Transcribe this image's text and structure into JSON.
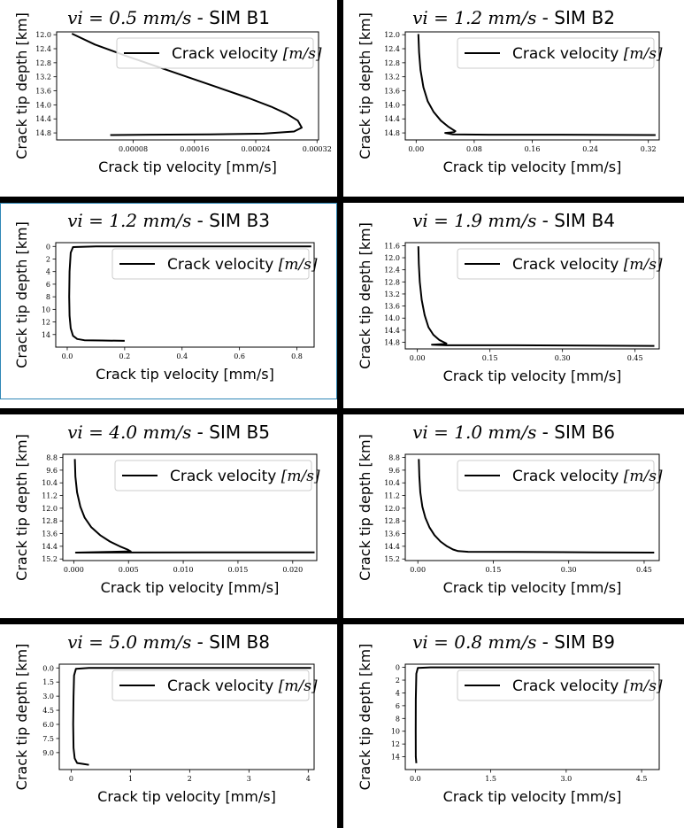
{
  "xlabel": "Crack tip velocity [mm/s]",
  "ylabel": "Crack tip depth [km]",
  "legend": {
    "text": "Crack velocity ",
    "unit": "[m/s]"
  },
  "line_color": "#000000",
  "selected_panel_color": "#2f87b6",
  "chart_data": [
    {
      "type": "line",
      "title_math": "v_i = 0.5 mm/s",
      "title_display": "vi = 0.5 mm/s",
      "title_sim": "SIM B1",
      "xlabel": "Crack tip velocity [mm/s]",
      "ylabel": "Crack tip depth [km]",
      "xlim": [
        -2e-05,
        0.000322
      ],
      "ylim": [
        15.0,
        11.92
      ],
      "y_inverted": true,
      "xticks": [
        8e-05,
        0.00016,
        0.00024,
        0.00032
      ],
      "xtick_labels": [
        "0.00008",
        "0.00016",
        "0.00024",
        "0.00032"
      ],
      "yticks": [
        12.0,
        12.4,
        12.8,
        13.2,
        13.6,
        14.0,
        14.4,
        14.8
      ],
      "ytick_labels": [
        "12.0",
        "12.4",
        "12.8",
        "13.2",
        "13.6",
        "14.0",
        "14.4",
        "14.8"
      ],
      "legend_position": "upper right",
      "series": [
        {
          "name": "Crack velocity [m/s]",
          "x": [
            0.0,
            3e-05,
            7e-05,
            0.00011,
            0.00015,
            0.00019,
            0.00023,
            0.00026,
            0.00028,
            0.000295,
            0.0003,
            0.00029,
            0.00025,
            0.00018,
            0.0001,
            5e-05
          ],
          "y": [
            11.97,
            12.28,
            12.6,
            12.9,
            13.2,
            13.5,
            13.8,
            14.05,
            14.25,
            14.45,
            14.65,
            14.76,
            14.82,
            14.84,
            14.85,
            14.86
          ]
        }
      ]
    },
    {
      "type": "line",
      "title_math": "v_i = 1.2 mm/s",
      "title_display": "vi = 1.2 mm/s",
      "title_sim": "SIM B2",
      "xlabel": "Crack tip velocity [mm/s]",
      "ylabel": "Crack tip depth [km]",
      "xlim": [
        -0.015,
        0.335
      ],
      "ylim": [
        15.0,
        11.92
      ],
      "y_inverted": true,
      "xticks": [
        0.0,
        0.08,
        0.16,
        0.24,
        0.32
      ],
      "xtick_labels": [
        "0.00",
        "0.08",
        "0.16",
        "0.24",
        "0.32"
      ],
      "yticks": [
        12.0,
        12.4,
        12.8,
        13.2,
        13.6,
        14.0,
        14.4,
        14.8
      ],
      "ytick_labels": [
        "12.0",
        "12.4",
        "12.8",
        "13.2",
        "13.6",
        "14.0",
        "14.4",
        "14.8"
      ],
      "legend_position": "upper right",
      "series": [
        {
          "name": "Crack velocity [m/s]",
          "x": [
            0.003,
            0.004,
            0.006,
            0.01,
            0.016,
            0.024,
            0.034,
            0.044,
            0.05,
            0.054,
            0.052,
            0.04,
            0.05,
            0.1,
            0.2,
            0.33
          ],
          "y": [
            11.98,
            12.5,
            13.0,
            13.5,
            13.9,
            14.2,
            14.45,
            14.62,
            14.7,
            14.75,
            14.78,
            14.8,
            14.84,
            14.85,
            14.85,
            14.86
          ]
        }
      ]
    },
    {
      "type": "line",
      "title_math": "v_i = 1.2 mm/s",
      "title_display": "vi = 1.2 mm/s",
      "title_sim": "SIM B3",
      "xlabel": "Crack tip velocity [mm/s]",
      "ylabel": "Crack tip depth [km]",
      "xlim": [
        -0.04,
        0.86
      ],
      "ylim": [
        16.0,
        -0.6
      ],
      "y_inverted": true,
      "xticks": [
        0.0,
        0.2,
        0.4,
        0.6,
        0.8
      ],
      "xtick_labels": [
        "0.0",
        "0.2",
        "0.4",
        "0.6",
        "0.8"
      ],
      "yticks": [
        0,
        2,
        4,
        6,
        8,
        10,
        12,
        14
      ],
      "ytick_labels": [
        "0",
        "2",
        "4",
        "6",
        "8",
        "10",
        "12",
        "14"
      ],
      "legend_position": "upper right",
      "series": [
        {
          "name": "Crack velocity [m/s]",
          "x": [
            0.85,
            0.5,
            0.1,
            0.02,
            0.012,
            0.008,
            0.007,
            0.008,
            0.012,
            0.02,
            0.035,
            0.06,
            0.12,
            0.2
          ],
          "y": [
            0.0,
            0.0,
            0.0,
            0.1,
            1.0,
            4.0,
            8.0,
            11.0,
            13.0,
            14.2,
            14.7,
            14.9,
            14.95,
            15.0
          ]
        }
      ]
    },
    {
      "type": "line",
      "title_math": "v_i = 1.9 mm/s",
      "title_display": "vi = 1.9 mm/s",
      "title_sim": "SIM B4",
      "xlabel": "Crack tip velocity [mm/s]",
      "ylabel": "Crack tip depth [km]",
      "xlim": [
        -0.025,
        0.5
      ],
      "ylim": [
        15.02,
        11.5
      ],
      "y_inverted": true,
      "xticks": [
        0.0,
        0.15,
        0.3,
        0.45
      ],
      "xtick_labels": [
        "0.00",
        "0.15",
        "0.30",
        "0.45"
      ],
      "yticks": [
        11.6,
        12.0,
        12.4,
        12.8,
        13.2,
        13.6,
        14.0,
        14.4,
        14.8
      ],
      "ytick_labels": [
        "11.6",
        "12.0",
        "12.4",
        "12.8",
        "13.2",
        "13.6",
        "14.0",
        "14.4",
        "14.8"
      ],
      "legend_position": "upper right",
      "series": [
        {
          "name": "Crack velocity [m/s]",
          "x": [
            0.002,
            0.003,
            0.005,
            0.009,
            0.015,
            0.023,
            0.033,
            0.045,
            0.055,
            0.06,
            0.055,
            0.03,
            0.06,
            0.2,
            0.35,
            0.49
          ],
          "y": [
            11.62,
            12.2,
            12.8,
            13.4,
            13.9,
            14.3,
            14.55,
            14.72,
            14.8,
            14.84,
            14.86,
            14.88,
            14.9,
            14.9,
            14.91,
            14.92
          ]
        }
      ]
    },
    {
      "type": "line",
      "title_math": "v_i = 4.0 mm/s",
      "title_display": "vi = 4.0 mm/s",
      "title_sim": "SIM B5",
      "xlabel": "Crack tip velocity [mm/s]",
      "ylabel": "Crack tip depth [km]",
      "xlim": [
        -0.001,
        0.0222
      ],
      "ylim": [
        15.3,
        8.6
      ],
      "y_inverted": true,
      "xticks": [
        0.0,
        0.005,
        0.01,
        0.015,
        0.02
      ],
      "xtick_labels": [
        "0.000",
        "0.005",
        "0.010",
        "0.015",
        "0.020"
      ],
      "yticks": [
        8.8,
        9.6,
        10.4,
        11.2,
        12.0,
        12.8,
        13.6,
        14.4,
        15.2
      ],
      "ytick_labels": [
        "8.8",
        "9.6",
        "10.4",
        "11.2",
        "12.0",
        "12.8",
        "13.6",
        "14.4",
        "15.2"
      ],
      "legend_position": "upper right",
      "series": [
        {
          "name": "Crack velocity [m/s]",
          "x": [
            0.0001,
            0.00015,
            0.0003,
            0.0006,
            0.001,
            0.0016,
            0.0024,
            0.0033,
            0.0042,
            0.0049,
            0.0052,
            0.003,
            0.0002,
            0.005,
            0.012,
            0.022
          ],
          "y": [
            8.9,
            10.0,
            11.0,
            11.9,
            12.6,
            13.2,
            13.7,
            14.1,
            14.4,
            14.6,
            14.72,
            14.76,
            14.8,
            14.79,
            14.78,
            14.78
          ]
        }
      ]
    },
    {
      "type": "line",
      "title_math": "v_i = 1.0 mm/s",
      "title_display": "vi = 1.0 mm/s",
      "title_sim": "SIM B6",
      "xlabel": "Crack tip velocity [mm/s]",
      "ylabel": "Crack tip depth [km]",
      "xlim": [
        -0.025,
        0.48
      ],
      "ylim": [
        15.3,
        8.6
      ],
      "y_inverted": true,
      "xticks": [
        0.0,
        0.15,
        0.3,
        0.45
      ],
      "xtick_labels": [
        "0.00",
        "0.15",
        "0.30",
        "0.45"
      ],
      "yticks": [
        8.8,
        9.6,
        10.4,
        11.2,
        12.0,
        12.8,
        13.6,
        14.4,
        15.2
      ],
      "ytick_labels": [
        "8.8",
        "9.6",
        "10.4",
        "11.2",
        "12.0",
        "12.8",
        "13.6",
        "14.4",
        "15.2"
      ],
      "legend_position": "upper right",
      "series": [
        {
          "name": "Crack velocity [m/s]",
          "x": [
            0.002,
            0.003,
            0.005,
            0.009,
            0.015,
            0.023,
            0.033,
            0.045,
            0.058,
            0.07,
            0.08,
            0.1,
            0.2,
            0.35,
            0.47
          ],
          "y": [
            8.9,
            10.0,
            11.0,
            11.9,
            12.6,
            13.2,
            13.7,
            14.1,
            14.4,
            14.6,
            14.7,
            14.75,
            14.76,
            14.78,
            14.8
          ]
        }
      ]
    },
    {
      "type": "line",
      "title_math": "v_i = 5.0 mm/s",
      "title_display": "vi = 5.0 mm/s",
      "title_sim": "SIM B8",
      "xlabel": "Crack tip velocity [mm/s]",
      "ylabel": "Crack tip depth [km]",
      "xlim": [
        -0.2,
        4.1
      ],
      "ylim": [
        10.8,
        -0.4
      ],
      "y_inverted": true,
      "xticks": [
        0,
        1,
        2,
        3,
        4
      ],
      "xtick_labels": [
        "0",
        "1",
        "2",
        "3",
        "4"
      ],
      "yticks": [
        0.0,
        1.5,
        3.0,
        4.5,
        6.0,
        7.5,
        9.0
      ],
      "ytick_labels": [
        "0.0",
        "1.5",
        "3.0",
        "4.5",
        "6.0",
        "7.5",
        "9.0"
      ],
      "legend_position": "upper right",
      "series": [
        {
          "name": "Crack velocity [m/s]",
          "x": [
            4.05,
            2.0,
            0.3,
            0.08,
            0.05,
            0.04,
            0.035,
            0.04,
            0.06,
            0.1,
            0.2,
            0.3
          ],
          "y": [
            0.0,
            0.0,
            0.0,
            0.1,
            0.8,
            3.0,
            6.0,
            8.5,
            9.6,
            10.1,
            10.2,
            10.3
          ]
        }
      ]
    },
    {
      "type": "line",
      "title_math": "v_i = 0.8 mm/s",
      "title_display": "vi = 0.8 mm/s",
      "title_sim": "SIM B9",
      "xlabel": "Crack tip velocity [mm/s]",
      "ylabel": "Crack tip depth [km]",
      "xlim": [
        -0.2,
        4.85
      ],
      "ylim": [
        16.0,
        -0.5
      ],
      "y_inverted": true,
      "xticks": [
        0.0,
        1.5,
        3.0,
        4.5
      ],
      "xtick_labels": [
        "0.0",
        "1.5",
        "3.0",
        "4.5"
      ],
      "yticks": [
        0,
        2,
        4,
        6,
        8,
        10,
        12,
        14
      ],
      "ytick_labels": [
        "0",
        "2",
        "4",
        "6",
        "8",
        "10",
        "12",
        "14"
      ],
      "legend_position": "upper right",
      "series": [
        {
          "name": "Crack velocity [m/s]",
          "x": [
            4.75,
            2.0,
            0.3,
            0.05,
            0.02,
            0.01,
            0.008,
            0.01,
            0.02
          ],
          "y": [
            0.0,
            0.0,
            0.0,
            0.1,
            1.0,
            5.0,
            10.0,
            14.0,
            15.0
          ]
        }
      ]
    }
  ]
}
